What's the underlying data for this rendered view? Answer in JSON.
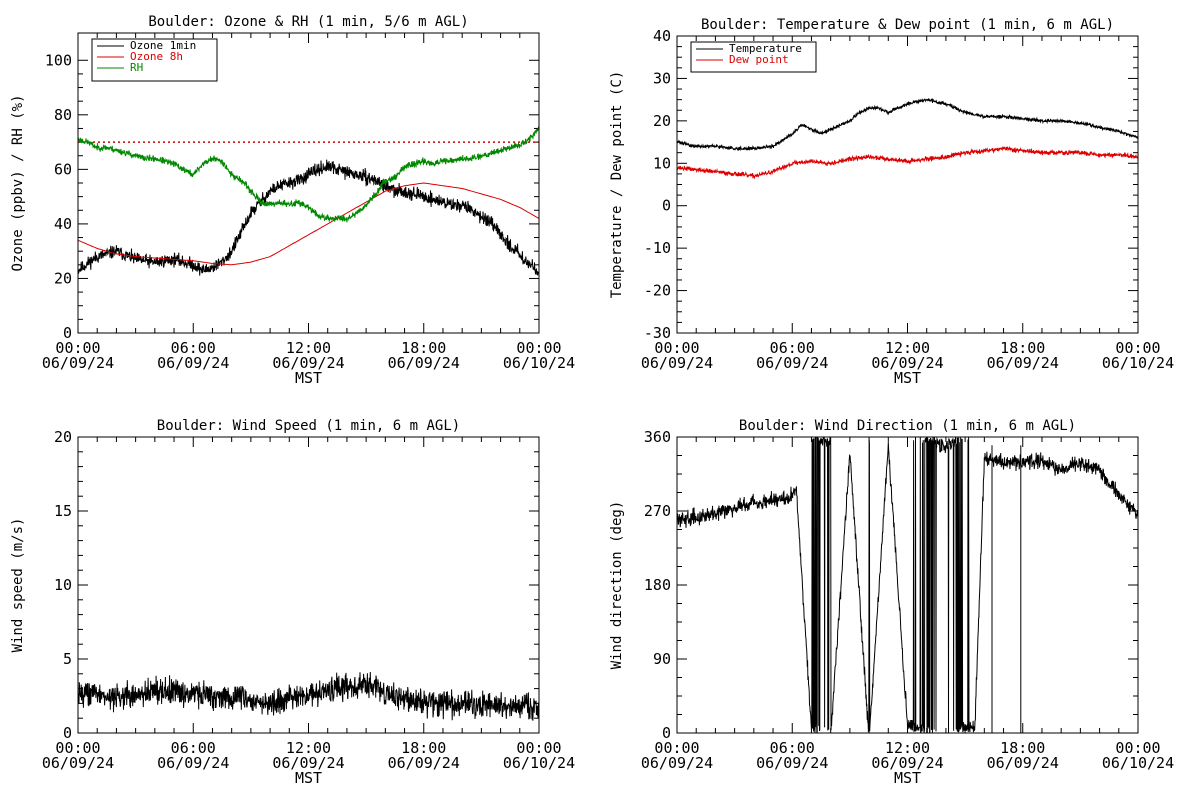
{
  "x_axis": {
    "tick_times": [
      "00:00",
      "06:00",
      "12:00",
      "18:00",
      "00:00"
    ],
    "tick_dates": [
      "06/09/24",
      "06/09/24",
      "06/09/24",
      "06/09/24",
      "06/10/24"
    ],
    "xlabel": "MST"
  },
  "chart_data": [
    {
      "id": "ozone-rh",
      "type": "line",
      "title": "Boulder: Ozone & RH (1 min, 5/6 m AGL)",
      "ylabel": "Ozone (ppbv) / RH (%)",
      "xlim": [
        0,
        24
      ],
      "ylim": [
        0,
        110
      ],
      "yticks": [
        0,
        20,
        40,
        60,
        80,
        100
      ],
      "hlines": [
        {
          "y": 70,
          "color": "#cc0000",
          "style": "dotted"
        }
      ],
      "legend": {
        "position": "top-left",
        "entries": [
          "Ozone 1min",
          "Ozone 8h",
          "RH"
        ]
      },
      "series": [
        {
          "name": "Ozone 1min",
          "color": "#000000",
          "noise": 1.8,
          "seed": 11,
          "x": [
            0,
            1,
            2,
            3,
            4,
            5,
            6,
            6.5,
            7,
            7.5,
            8,
            8.5,
            9,
            9.5,
            10,
            10.5,
            11,
            11.5,
            12,
            12.5,
            13,
            13.5,
            14,
            14.5,
            15,
            15.5,
            16,
            16.5,
            17,
            17.5,
            18,
            18.5,
            19,
            19.5,
            20,
            20.5,
            21,
            21.5,
            22,
            22.5,
            23,
            23.5,
            24
          ],
          "y": [
            23,
            28,
            30,
            27,
            26,
            27,
            25,
            23,
            24,
            26,
            30,
            37,
            44,
            48,
            52,
            54,
            55,
            56,
            58,
            60,
            61,
            60,
            59,
            58,
            57,
            56,
            54,
            52,
            52,
            51,
            50,
            49,
            48,
            47,
            47,
            45,
            43,
            40,
            36,
            32,
            29,
            25,
            23
          ]
        },
        {
          "name": "Ozone 8h",
          "color": "#dd0000",
          "noise": 0,
          "seed": 0,
          "x": [
            0,
            1,
            2,
            3,
            4,
            5,
            6,
            7,
            8,
            9,
            10,
            11,
            12,
            13,
            14,
            15,
            16,
            17,
            18,
            19,
            20,
            21,
            22,
            23,
            24
          ],
          "y": [
            34,
            31,
            29,
            28,
            27.5,
            27,
            26.5,
            25.5,
            25,
            26,
            28,
            32,
            36,
            40,
            44,
            48,
            52,
            54,
            55,
            54,
            53,
            51,
            49,
            46,
            42
          ]
        },
        {
          "name": "RH",
          "color": "#008800",
          "noise": 0.9,
          "seed": 23,
          "x": [
            0,
            0.5,
            1,
            1.5,
            2,
            2.5,
            3,
            3.5,
            4,
            4.5,
            5,
            5.5,
            6,
            6.5,
            7,
            7.5,
            8,
            8.5,
            9,
            9.5,
            10,
            10.5,
            11,
            11.5,
            12,
            12.5,
            13,
            13.5,
            14,
            14.5,
            15,
            15.5,
            16,
            16.5,
            17,
            17.5,
            18,
            18.5,
            19,
            19.5,
            20,
            20.5,
            21,
            21.5,
            22,
            22.5,
            23,
            23.5,
            24
          ],
          "y": [
            71,
            70,
            68,
            68,
            67,
            66,
            65,
            64,
            64,
            63,
            62,
            60,
            58,
            62,
            64,
            63,
            58,
            56,
            52,
            48,
            47,
            48,
            47,
            48,
            46,
            43,
            42,
            42,
            42,
            44,
            47,
            51,
            56,
            57,
            61,
            62,
            63,
            62,
            63,
            63,
            64,
            64,
            65,
            66,
            67,
            68,
            69,
            71,
            75
          ]
        }
      ]
    },
    {
      "id": "temperature-dewpoint",
      "type": "line",
      "title": "Boulder: Temperature & Dew point (1 min, 6 m AGL)",
      "ylabel": "Temperature / Dew point (C)",
      "xlim": [
        0,
        24
      ],
      "ylim": [
        -30,
        40
      ],
      "yticks": [
        -30,
        -20,
        -10,
        0,
        10,
        20,
        30,
        40
      ],
      "legend": {
        "position": "top-left",
        "entries": [
          "Temperature",
          "Dew point"
        ]
      },
      "series": [
        {
          "name": "Temperature",
          "color": "#000000",
          "noise": 0.3,
          "seed": 31,
          "x": [
            0,
            1,
            2,
            3,
            4,
            5,
            6,
            6.5,
            7,
            7.5,
            8,
            8.5,
            9,
            9.5,
            10,
            10.5,
            11,
            11.5,
            12,
            12.5,
            13,
            13.5,
            14,
            14.5,
            15,
            15.5,
            16,
            17,
            18,
            19,
            20,
            21,
            22,
            23,
            24
          ],
          "y": [
            15,
            14,
            14,
            13.5,
            13.5,
            14,
            17,
            19,
            18,
            17,
            18,
            19,
            20,
            22,
            23,
            23,
            22,
            23,
            24,
            24.5,
            25,
            24.5,
            24,
            23,
            22,
            21.5,
            21,
            21,
            20.5,
            20,
            20,
            19.5,
            18.5,
            17.5,
            16
          ]
        },
        {
          "name": "Dew point",
          "color": "#dd0000",
          "noise": 0.4,
          "seed": 37,
          "x": [
            0,
            1,
            2,
            3,
            4,
            5,
            6,
            7,
            8,
            9,
            10,
            11,
            12,
            13,
            14,
            15,
            16,
            17,
            18,
            19,
            20,
            21,
            22,
            23,
            24
          ],
          "y": [
            9,
            8.5,
            8,
            7.5,
            7,
            8,
            10,
            10.5,
            10,
            11,
            11.5,
            11,
            10.5,
            11,
            11.5,
            12.5,
            13,
            13.5,
            13,
            12.5,
            12.5,
            12.5,
            12,
            12,
            11.5
          ]
        }
      ]
    },
    {
      "id": "wind-speed",
      "type": "line",
      "title": "Boulder: Wind Speed (1 min, 6 m AGL)",
      "ylabel": "Wind speed (m/s)",
      "xlim": [
        0,
        24
      ],
      "ylim": [
        0,
        20
      ],
      "yticks": [
        0,
        5,
        10,
        15,
        20
      ],
      "series": [
        {
          "name": "",
          "color": "#000000",
          "noise": 0.65,
          "seed": 43,
          "x": [
            0,
            1,
            2,
            3,
            4,
            5,
            6,
            7,
            8,
            9,
            10,
            11,
            12,
            13,
            14,
            15,
            16,
            17,
            18,
            19,
            20,
            21,
            22,
            23,
            24
          ],
          "y": [
            2.8,
            2.6,
            2.4,
            2.5,
            2.9,
            2.8,
            2.7,
            2.5,
            2.4,
            2.2,
            2.0,
            2.3,
            2.6,
            2.9,
            3.0,
            3.3,
            2.7,
            2.3,
            2.0,
            2.0,
            1.9,
            1.9,
            1.8,
            1.8,
            1.8
          ]
        }
      ]
    },
    {
      "id": "wind-direction",
      "type": "line",
      "title": "Boulder: Wind Direction (1 min, 6 m AGL)",
      "ylabel": "Wind direction (deg)",
      "xlim": [
        0,
        24
      ],
      "ylim": [
        0,
        360
      ],
      "yticks": [
        0,
        90,
        180,
        270,
        360
      ],
      "series": [
        {
          "name": "",
          "color": "#000000",
          "noise": 7,
          "seed": 59,
          "wrap": true,
          "x": [
            0,
            1,
            2,
            3,
            4,
            5,
            6,
            6.2,
            7,
            8,
            9,
            10,
            11,
            12,
            13,
            14,
            15,
            15.5,
            16,
            17,
            18,
            19,
            20,
            21,
            22,
            23,
            24
          ],
          "y": [
            260,
            262,
            268,
            275,
            280,
            283,
            288,
            300,
            5,
            -5,
            340,
            -10,
            350,
            10,
            0,
            -12,
            8,
            5,
            335,
            330,
            330,
            330,
            320,
            330,
            320,
            290,
            265
          ]
        }
      ]
    }
  ]
}
